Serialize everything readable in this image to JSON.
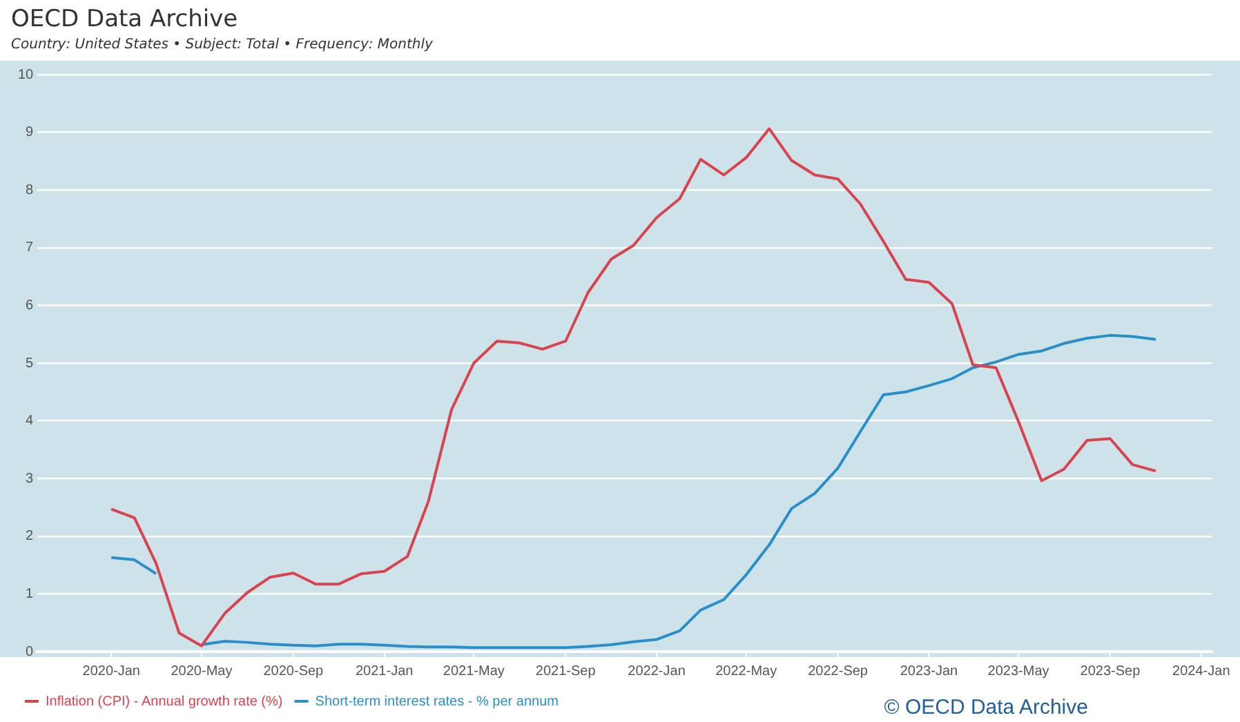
{
  "chart_data": {
    "type": "line",
    "title": "OECD Data Archive",
    "subtitle": "Country: United States • Subject: Total • Frequency: Monthly",
    "annotations": [
      "© OECD Data Archive"
    ],
    "x": [
      "2020-01",
      "2020-02",
      "2020-03",
      "2020-04",
      "2020-05",
      "2020-06",
      "2020-07",
      "2020-08",
      "2020-09",
      "2020-10",
      "2020-11",
      "2020-12",
      "2021-01",
      "2021-02",
      "2021-03",
      "2021-04",
      "2021-05",
      "2021-06",
      "2021-07",
      "2021-08",
      "2021-09",
      "2021-10",
      "2021-11",
      "2021-12",
      "2022-01",
      "2022-02",
      "2022-03",
      "2022-04",
      "2022-05",
      "2022-06",
      "2022-07",
      "2022-08",
      "2022-09",
      "2022-10",
      "2022-11",
      "2022-12",
      "2023-01",
      "2023-02",
      "2023-03",
      "2023-04",
      "2023-05",
      "2023-06",
      "2023-07",
      "2023-08",
      "2023-09",
      "2023-10",
      "2023-11"
    ],
    "series": [
      {
        "name": "Inflation (CPI) - Annual growth rate (%)",
        "color": "#d9434f",
        "values": [
          2.47,
          2.32,
          1.53,
          0.32,
          0.1,
          0.66,
          1.02,
          1.29,
          1.36,
          1.17,
          1.17,
          1.35,
          1.39,
          1.65,
          2.6,
          4.19,
          5.0,
          5.38,
          5.35,
          5.24,
          5.38,
          6.22,
          6.8,
          7.04,
          7.52,
          7.85,
          8.53,
          8.26,
          8.56,
          9.06,
          8.51,
          8.26,
          8.19,
          7.76,
          7.11,
          6.45,
          6.4,
          6.03,
          4.97,
          4.92,
          3.99,
          2.96,
          3.16,
          3.66,
          3.69,
          3.24,
          3.13
        ]
      },
      {
        "name": "Short-term interest rates - % per annum",
        "color": "#2a8fc9",
        "values": [
          1.63,
          1.59,
          1.35,
          null,
          0.12,
          0.18,
          0.16,
          0.13,
          0.11,
          0.1,
          0.13,
          0.13,
          0.11,
          0.09,
          0.08,
          0.08,
          0.07,
          0.07,
          0.07,
          0.07,
          0.07,
          0.09,
          0.12,
          0.17,
          0.21,
          0.36,
          0.72,
          0.9,
          1.33,
          1.85,
          2.48,
          2.74,
          3.18,
          3.81,
          4.45,
          4.5,
          4.61,
          4.73,
          4.92,
          5.02,
          5.15,
          5.21,
          5.34,
          5.43,
          5.48,
          5.46,
          5.41
        ]
      }
    ],
    "xlim": [
      "2019-09-24",
      "2024-01-16"
    ],
    "xticks": [
      {
        "value": "2020-01",
        "label": "2020-Jan"
      },
      {
        "value": "2020-05",
        "label": "2020-May"
      },
      {
        "value": "2020-09",
        "label": "2020-Sep"
      },
      {
        "value": "2021-01",
        "label": "2021-Jan"
      },
      {
        "value": "2021-05",
        "label": "2021-May"
      },
      {
        "value": "2021-09",
        "label": "2021-Sep"
      },
      {
        "value": "2022-01",
        "label": "2022-Jan"
      },
      {
        "value": "2022-05",
        "label": "2022-May"
      },
      {
        "value": "2022-09",
        "label": "2022-Sep"
      },
      {
        "value": "2023-01",
        "label": "2023-Jan"
      },
      {
        "value": "2023-05",
        "label": "2023-May"
      },
      {
        "value": "2023-09",
        "label": "2023-Sep"
      },
      {
        "value": "2024-01",
        "label": "2024-Jan"
      }
    ],
    "ylim": [
      0,
      10
    ],
    "yticks": [
      0,
      1,
      2,
      3,
      4,
      5,
      6,
      7,
      8,
      9,
      10
    ],
    "grid": "y",
    "legend": "bottom left",
    "marker": "none",
    "line_style": "solid"
  }
}
